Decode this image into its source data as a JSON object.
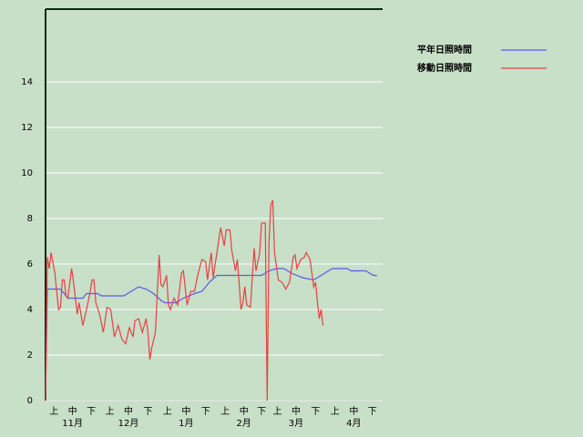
{
  "chart_data": {
    "type": "line",
    "series": [
      {
        "name": "平年日照時間",
        "color": "#5a5ae6",
        "x": [
          0,
          1,
          8,
          12,
          20,
          22,
          28,
          30,
          42,
          46,
          50,
          54,
          58,
          62,
          64,
          70,
          74,
          80,
          84,
          88,
          92,
          116,
          120,
          124,
          128,
          132,
          138,
          144,
          148,
          152,
          154,
          162,
          164,
          172,
          176,
          178
        ],
        "values": [
          0,
          4.9,
          4.9,
          4.5,
          4.5,
          4.7,
          4.7,
          4.6,
          4.6,
          4.8,
          5.0,
          4.9,
          4.7,
          4.4,
          4.3,
          4.3,
          4.5,
          4.7,
          4.8,
          5.2,
          5.5,
          5.5,
          5.7,
          5.8,
          5.8,
          5.6,
          5.4,
          5.3,
          5.5,
          5.7,
          5.8,
          5.8,
          5.7,
          5.7,
          5.5,
          5.5
        ]
      },
      {
        "name": "移動日照時間",
        "color": "#e84040",
        "x": [
          0,
          1,
          2,
          3,
          5,
          7,
          8,
          9,
          10,
          11,
          12,
          14,
          15,
          17,
          18,
          20,
          22,
          24,
          25,
          26,
          27,
          29,
          31,
          33,
          35,
          37,
          39,
          41,
          43,
          45,
          47,
          48,
          50,
          52,
          54,
          55,
          56,
          57,
          59,
          61,
          62,
          63,
          65,
          66,
          67,
          69,
          71,
          73,
          74,
          76,
          78,
          80,
          82,
          84,
          86,
          87,
          89,
          90,
          92,
          94,
          96,
          97,
          99,
          100,
          102,
          103,
          105,
          106,
          107,
          108,
          110,
          112,
          113,
          115,
          116,
          118,
          119,
          120,
          121,
          122,
          123,
          125,
          127,
          129,
          131,
          133,
          134,
          135,
          137,
          139,
          140,
          142,
          144,
          145,
          146,
          147,
          148,
          149
        ],
        "values": [
          0,
          6.3,
          5.8,
          6.5,
          5.6,
          4.0,
          4.1,
          5.3,
          5.3,
          4.6,
          4.5,
          5.8,
          5.2,
          3.8,
          4.3,
          3.3,
          4.0,
          4.8,
          5.3,
          5.3,
          4.3,
          3.8,
          3.0,
          4.1,
          4.0,
          2.8,
          3.3,
          2.7,
          2.5,
          3.2,
          2.8,
          3.5,
          3.6,
          3.0,
          3.6,
          3.0,
          1.8,
          2.3,
          3.0,
          6.4,
          5.1,
          5.0,
          5.5,
          4.2,
          4.0,
          4.5,
          4.2,
          5.6,
          5.7,
          4.2,
          4.8,
          4.8,
          5.6,
          6.2,
          6.1,
          5.3,
          6.5,
          5.4,
          6.5,
          7.6,
          6.8,
          7.5,
          7.5,
          6.6,
          5.7,
          6.2,
          4.0,
          4.3,
          5.0,
          4.2,
          4.1,
          6.7,
          5.7,
          6.5,
          7.8,
          7.8,
          0,
          7.0,
          8.6,
          8.8,
          6.5,
          5.3,
          5.2,
          4.9,
          5.2,
          6.3,
          6.4,
          5.8,
          6.2,
          6.3,
          6.5,
          6.2,
          5.0,
          5.2,
          4.3,
          3.6,
          4.0,
          3.3
        ]
      }
    ],
    "xlim": [
      0,
      181
    ],
    "xticks": [
      {
        "value": 4.5,
        "label": "上"
      },
      {
        "value": 14.5,
        "label": "中"
      },
      {
        "value": 24.5,
        "label": "下"
      },
      {
        "value": 34.5,
        "label": "上"
      },
      {
        "value": 44.5,
        "label": "中"
      },
      {
        "value": 55,
        "label": "下"
      },
      {
        "value": 65.5,
        "label": "上"
      },
      {
        "value": 75.5,
        "label": "中"
      },
      {
        "value": 86,
        "label": "下"
      },
      {
        "value": 96.5,
        "label": "上"
      },
      {
        "value": 106.5,
        "label": "中"
      },
      {
        "value": 116,
        "label": "下"
      },
      {
        "value": 124.5,
        "label": "上"
      },
      {
        "value": 134.5,
        "label": "中"
      },
      {
        "value": 145,
        "label": "下"
      },
      {
        "value": 155.5,
        "label": "上"
      },
      {
        "value": 165.5,
        "label": "中"
      },
      {
        "value": 175.5,
        "label": "下"
      }
    ],
    "month_labels": [
      {
        "value": 14.5,
        "label": "11月"
      },
      {
        "value": 44.5,
        "label": "12月"
      },
      {
        "value": 75.5,
        "label": "1月"
      },
      {
        "value": 106.5,
        "label": "2月"
      },
      {
        "value": 134.5,
        "label": "3月"
      },
      {
        "value": 165.5,
        "label": "4月"
      }
    ],
    "ylim": [
      0,
      17.2
    ],
    "yticks": [
      0,
      2,
      4,
      6,
      8,
      10,
      12,
      14
    ],
    "grid": true
  }
}
